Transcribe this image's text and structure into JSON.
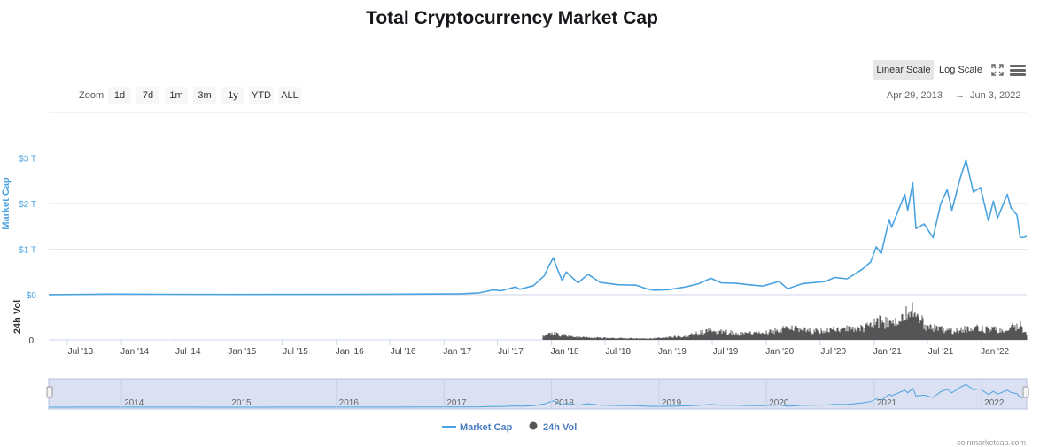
{
  "title": "Total Cryptocurrency Market Cap",
  "controls": {
    "linear_label": "Linear Scale",
    "log_label": "Log Scale",
    "zoom_label": "Zoom",
    "zoom_buttons": [
      "1d",
      "7d",
      "1m",
      "3m",
      "1y",
      "YTD",
      "ALL"
    ],
    "range_from": "Apr 29, 2013",
    "range_arrow": "→",
    "range_to": "Jun 3, 2022"
  },
  "credits": "coinmarketcap.com",
  "colors": {
    "market_cap": "#4aa3df",
    "volume": "#555555",
    "navigator_fill": "#dbe1f2"
  },
  "icons": {
    "fullscreen": "fullscreen-icon",
    "menu": "menu-icon"
  },
  "chart_data": {
    "type": "line",
    "title": "Total Cryptocurrency Market Cap",
    "x_range": [
      "2013-04-29",
      "2022-06-03"
    ],
    "xlabel": "",
    "x_tick_labels": [
      "Jul '13",
      "Jan '14",
      "Jul '14",
      "Jan '15",
      "Jul '15",
      "Jan '16",
      "Jul '16",
      "Jan '17",
      "Jul '17",
      "Jan '18",
      "Jul '18",
      "Jan '19",
      "Jul '19",
      "Jan '20",
      "Jul '20",
      "Jan '21",
      "Jul '21",
      "Jan '22"
    ],
    "x_tick_dates": [
      "2013-07-01",
      "2014-01-01",
      "2014-07-01",
      "2015-01-01",
      "2015-07-01",
      "2016-01-01",
      "2016-07-01",
      "2017-01-01",
      "2017-07-01",
      "2018-01-01",
      "2018-07-01",
      "2019-01-01",
      "2019-07-01",
      "2020-01-01",
      "2020-07-01",
      "2021-01-01",
      "2021-07-01",
      "2022-01-01"
    ],
    "y_axis": {
      "label": "Market Cap",
      "unit": "trillion USD",
      "ticks": [
        "$0",
        "$1 T",
        "$2 T",
        "$3 T"
      ],
      "tick_values": [
        0,
        1,
        2,
        3
      ],
      "ylim": [
        0,
        3.2
      ]
    },
    "vol_axis": {
      "label": "24h Vol",
      "ticks": [
        "0"
      ]
    },
    "grid": true,
    "legend": {
      "position": "bottom-center",
      "entries": [
        "Market Cap",
        "24h Vol"
      ]
    },
    "navigator_labels": [
      "2014",
      "2015",
      "2016",
      "2017",
      "2018",
      "2019",
      "2020",
      "2021",
      "2022"
    ],
    "navigator_dates": [
      "2014-01-01",
      "2015-01-01",
      "2016-01-01",
      "2017-01-01",
      "2018-01-01",
      "2019-01-01",
      "2020-01-01",
      "2021-01-01",
      "2022-01-01"
    ],
    "series": [
      {
        "name": "Market Cap",
        "points": [
          [
            "2013-04-29",
            0.0015
          ],
          [
            "2013-11-30",
            0.014
          ],
          [
            "2014-06-01",
            0.009
          ],
          [
            "2015-01-01",
            0.005
          ],
          [
            "2016-01-01",
            0.007
          ],
          [
            "2016-07-01",
            0.011
          ],
          [
            "2017-01-01",
            0.018
          ],
          [
            "2017-03-01",
            0.022
          ],
          [
            "2017-05-01",
            0.04
          ],
          [
            "2017-06-15",
            0.105
          ],
          [
            "2017-07-15",
            0.09
          ],
          [
            "2017-09-01",
            0.17
          ],
          [
            "2017-09-15",
            0.12
          ],
          [
            "2017-11-01",
            0.2
          ],
          [
            "2017-12-08",
            0.42
          ],
          [
            "2017-12-22",
            0.62
          ],
          [
            "2018-01-07",
            0.81
          ],
          [
            "2018-01-20",
            0.58
          ],
          [
            "2018-02-06",
            0.31
          ],
          [
            "2018-02-20",
            0.5
          ],
          [
            "2018-04-01",
            0.26
          ],
          [
            "2018-05-05",
            0.45
          ],
          [
            "2018-06-15",
            0.27
          ],
          [
            "2018-08-15",
            0.22
          ],
          [
            "2018-10-15",
            0.21
          ],
          [
            "2018-11-20",
            0.13
          ],
          [
            "2018-12-15",
            0.1
          ],
          [
            "2019-02-01",
            0.11
          ],
          [
            "2019-04-01",
            0.17
          ],
          [
            "2019-05-15",
            0.24
          ],
          [
            "2019-06-26",
            0.36
          ],
          [
            "2019-08-01",
            0.26
          ],
          [
            "2019-09-20",
            0.25
          ],
          [
            "2019-11-01",
            0.22
          ],
          [
            "2019-12-20",
            0.19
          ],
          [
            "2020-02-13",
            0.29
          ],
          [
            "2020-03-13",
            0.13
          ],
          [
            "2020-05-01",
            0.24
          ],
          [
            "2020-06-01",
            0.26
          ],
          [
            "2020-07-20",
            0.29
          ],
          [
            "2020-08-20",
            0.38
          ],
          [
            "2020-10-01",
            0.35
          ],
          [
            "2020-11-20",
            0.55
          ],
          [
            "2020-12-20",
            0.72
          ],
          [
            "2021-01-08",
            1.05
          ],
          [
            "2021-01-25",
            0.9
          ],
          [
            "2021-02-21",
            1.65
          ],
          [
            "2021-03-01",
            1.48
          ],
          [
            "2021-04-15",
            2.2
          ],
          [
            "2021-04-25",
            1.85
          ],
          [
            "2021-05-12",
            2.45
          ],
          [
            "2021-05-23",
            1.45
          ],
          [
            "2021-06-20",
            1.55
          ],
          [
            "2021-07-20",
            1.25
          ],
          [
            "2021-08-15",
            2.0
          ],
          [
            "2021-09-06",
            2.3
          ],
          [
            "2021-09-22",
            1.85
          ],
          [
            "2021-10-20",
            2.55
          ],
          [
            "2021-11-09",
            2.95
          ],
          [
            "2021-12-04",
            2.25
          ],
          [
            "2021-12-28",
            2.35
          ],
          [
            "2022-01-24",
            1.62
          ],
          [
            "2022-02-10",
            2.05
          ],
          [
            "2022-02-24",
            1.68
          ],
          [
            "2022-03-29",
            2.2
          ],
          [
            "2022-04-11",
            1.9
          ],
          [
            "2022-05-01",
            1.75
          ],
          [
            "2022-05-12",
            1.25
          ],
          [
            "2022-05-25",
            1.26
          ],
          [
            "2022-06-03",
            1.28
          ]
        ]
      },
      {
        "name": "24h Vol",
        "relative_scale": true,
        "points": [
          [
            "2017-12-01",
            0.12
          ],
          [
            "2018-01-10",
            0.2
          ],
          [
            "2018-04-01",
            0.08
          ],
          [
            "2018-08-01",
            0.06
          ],
          [
            "2018-12-01",
            0.04
          ],
          [
            "2019-04-01",
            0.12
          ],
          [
            "2019-06-26",
            0.3
          ],
          [
            "2019-10-01",
            0.2
          ],
          [
            "2020-01-01",
            0.22
          ],
          [
            "2020-03-13",
            0.38
          ],
          [
            "2020-06-01",
            0.27
          ],
          [
            "2020-09-01",
            0.33
          ],
          [
            "2020-12-20",
            0.42
          ],
          [
            "2021-01-11",
            0.65
          ],
          [
            "2021-03-01",
            0.5
          ],
          [
            "2021-04-18",
            0.8
          ],
          [
            "2021-05-19",
            1.0
          ],
          [
            "2021-06-20",
            0.5
          ],
          [
            "2021-08-01",
            0.35
          ],
          [
            "2021-10-01",
            0.3
          ],
          [
            "2021-12-04",
            0.38
          ],
          [
            "2022-01-22",
            0.35
          ],
          [
            "2022-03-01",
            0.3
          ],
          [
            "2022-05-12",
            0.45
          ],
          [
            "2022-06-03",
            0.25
          ]
        ]
      }
    ]
  }
}
